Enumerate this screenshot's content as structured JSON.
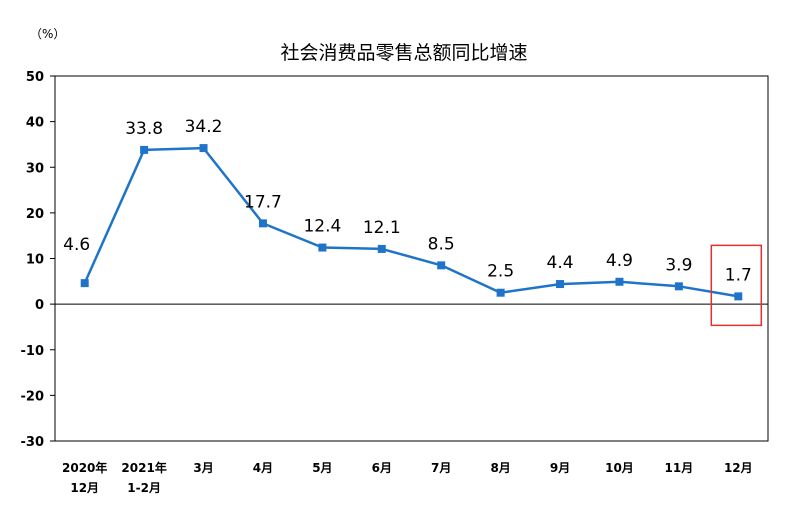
{
  "chart_data": {
    "type": "line",
    "title": "社会消费品零售总额同比增速",
    "unit_label": "（%）",
    "categories": [
      [
        "2020年",
        "12月"
      ],
      [
        "2021年",
        "1-2月"
      ],
      [
        "3月"
      ],
      [
        "4月"
      ],
      [
        "5月"
      ],
      [
        "6月"
      ],
      [
        "7月"
      ],
      [
        "8月"
      ],
      [
        "9月"
      ],
      [
        "10月"
      ],
      [
        "11月"
      ],
      [
        "12月"
      ]
    ],
    "values": [
      4.6,
      33.8,
      34.2,
      17.7,
      12.4,
      12.1,
      8.5,
      2.5,
      4.4,
      4.9,
      3.9,
      1.7
    ],
    "data_labels": [
      "4.6",
      "33.8",
      "34.2",
      "17.7",
      "12.4",
      "12.1",
      "8.5",
      "2.5",
      "4.4",
      "4.9",
      "3.9",
      "1.7"
    ],
    "ylim": [
      -30,
      50
    ],
    "yticks": [
      50,
      40,
      30,
      20,
      10,
      0,
      -10,
      -20,
      -30
    ],
    "grid": false,
    "line_color": "#1f74c9",
    "highlight_color": "#e03030",
    "highlight_index": 11
  }
}
